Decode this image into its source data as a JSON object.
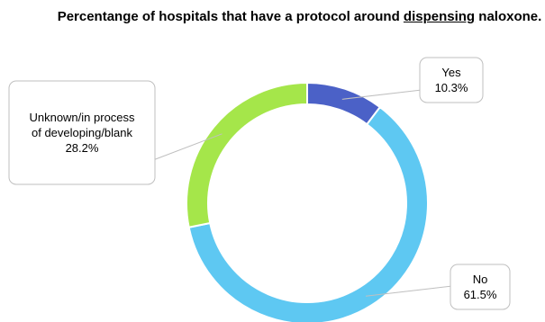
{
  "chart_data": {
    "type": "pie",
    "donut": true,
    "title_parts": [
      "Percentange of hospitals that have a protocol around ",
      "dispensing",
      " naloxone."
    ],
    "slices": [
      {
        "label": "Yes",
        "value": 10.3,
        "value_label": "10.3%",
        "color": "#4b61c7",
        "label_lines": [
          "Yes",
          "10.3%"
        ]
      },
      {
        "label": "No",
        "value": 61.5,
        "value_label": "61.5%",
        "color": "#5ec8f2",
        "label_lines": [
          "No",
          "61.5%"
        ]
      },
      {
        "label": "Unknown/in process of developing/blank",
        "value": 28.2,
        "value_label": "28.2%",
        "color": "#a5e64a",
        "label_lines": [
          "Unknown/in process",
          "of developing/blank",
          "28.2%"
        ]
      }
    ]
  }
}
